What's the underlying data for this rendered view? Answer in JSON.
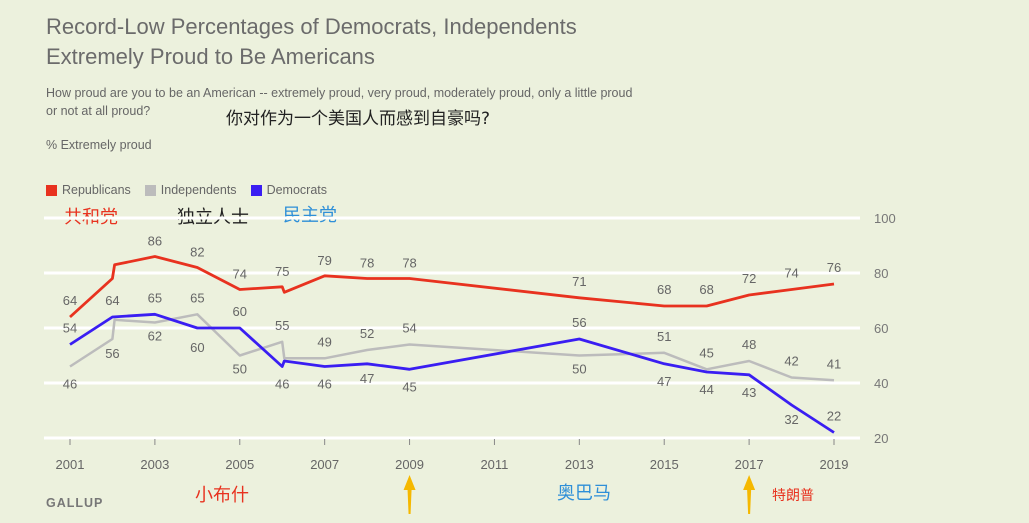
{
  "title_line1": "Record-Low Percentages of Democrats, Independents",
  "title_line2": "Extremely Proud to Be Americans",
  "subtitle_line1": "How proud are you to be an American -- extremely proud, very proud, moderately proud, only a little proud",
  "subtitle_line2": "or not at all proud?",
  "annotation_question": "你对作为一个美国人而感到自豪吗?",
  "unit_label": "% Extremely proud",
  "source": "GALLUP",
  "colors": {
    "background": "#ecf1dd",
    "republicans": "#e8321f",
    "independents": "#bcbcbc",
    "democrats": "#3a1ef2",
    "annotation_red": "#e8321f",
    "annotation_blue": "#2e8fd8",
    "arrow": "#f5b800"
  },
  "legend_cn": {
    "republicans": "共和党",
    "independents": "独立人士",
    "democrats": "民主党"
  },
  "annotations": {
    "bush": "小布什",
    "obama": "奥巴马",
    "trump": "特朗普"
  },
  "arrows": [
    {
      "name": "arrow-2009",
      "year": 2009
    },
    {
      "name": "arrow-2017",
      "year": 2017
    }
  ],
  "chart_data": {
    "type": "line",
    "title": "Record-Low Percentages of Democrats, Independents Extremely Proud to Be Americans",
    "ylabel": "% Extremely proud",
    "ylim": [
      20,
      100
    ],
    "yticks": [
      20,
      40,
      60,
      80,
      100
    ],
    "xlim": [
      2001,
      2019
    ],
    "xticks": [
      2001,
      2003,
      2005,
      2007,
      2009,
      2011,
      2013,
      2015,
      2017,
      2019
    ],
    "grid": true,
    "legend_position": "top-left",
    "series": [
      {
        "name": "Republicans",
        "key": "republicans",
        "points": [
          {
            "x": 2001.0,
            "y": 64,
            "label": "64"
          },
          {
            "x": 2002.0,
            "y": 78,
            "label": ""
          },
          {
            "x": 2002.05,
            "y": 83,
            "label": ""
          },
          {
            "x": 2003.0,
            "y": 86,
            "label": "86"
          },
          {
            "x": 2004.0,
            "y": 82,
            "label": "82"
          },
          {
            "x": 2005.0,
            "y": 74,
            "label": "74"
          },
          {
            "x": 2006.0,
            "y": 75,
            "label": "75"
          },
          {
            "x": 2006.05,
            "y": 73,
            "label": ""
          },
          {
            "x": 2007.0,
            "y": 79,
            "label": "79"
          },
          {
            "x": 2008.0,
            "y": 78,
            "label": "78"
          },
          {
            "x": 2009.0,
            "y": 78,
            "label": "78"
          },
          {
            "x": 2013.0,
            "y": 71,
            "label": "71"
          },
          {
            "x": 2015.0,
            "y": 68,
            "label": "68"
          },
          {
            "x": 2016.0,
            "y": 68,
            "label": "68"
          },
          {
            "x": 2017.0,
            "y": 72,
            "label": "72"
          },
          {
            "x": 2018.0,
            "y": 74,
            "label": "74"
          },
          {
            "x": 2019.0,
            "y": 76,
            "label": "76"
          }
        ]
      },
      {
        "name": "Independents",
        "key": "independents",
        "points": [
          {
            "x": 2001.0,
            "y": 46,
            "label": "46"
          },
          {
            "x": 2002.0,
            "y": 56,
            "label": "56"
          },
          {
            "x": 2002.05,
            "y": 63,
            "label": ""
          },
          {
            "x": 2003.0,
            "y": 62,
            "label": "62"
          },
          {
            "x": 2004.0,
            "y": 65,
            "label": "65"
          },
          {
            "x": 2005.0,
            "y": 50,
            "label": "50"
          },
          {
            "x": 2006.0,
            "y": 55,
            "label": "55"
          },
          {
            "x": 2006.05,
            "y": 49,
            "label": ""
          },
          {
            "x": 2007.0,
            "y": 49,
            "label": "49"
          },
          {
            "x": 2008.0,
            "y": 52,
            "label": "52"
          },
          {
            "x": 2009.0,
            "y": 54,
            "label": "54"
          },
          {
            "x": 2013.0,
            "y": 50,
            "label": "50"
          },
          {
            "x": 2015.0,
            "y": 51,
            "label": "51"
          },
          {
            "x": 2016.0,
            "y": 45,
            "label": "45"
          },
          {
            "x": 2017.0,
            "y": 48,
            "label": "48"
          },
          {
            "x": 2018.0,
            "y": 42,
            "label": "42"
          },
          {
            "x": 2019.0,
            "y": 41,
            "label": "41"
          }
        ]
      },
      {
        "name": "Democrats",
        "key": "democrats",
        "points": [
          {
            "x": 2001.0,
            "y": 54,
            "label": "54"
          },
          {
            "x": 2002.0,
            "y": 64,
            "label": "64"
          },
          {
            "x": 2003.0,
            "y": 65,
            "label": "65"
          },
          {
            "x": 2004.0,
            "y": 60,
            "label": "60"
          },
          {
            "x": 2005.0,
            "y": 60,
            "label": "60"
          },
          {
            "x": 2006.0,
            "y": 46,
            "label": "46"
          },
          {
            "x": 2006.05,
            "y": 48,
            "label": ""
          },
          {
            "x": 2007.0,
            "y": 46,
            "label": "46"
          },
          {
            "x": 2008.0,
            "y": 47,
            "label": "47"
          },
          {
            "x": 2009.0,
            "y": 45,
            "label": "45"
          },
          {
            "x": 2013.0,
            "y": 56,
            "label": "56"
          },
          {
            "x": 2015.0,
            "y": 47,
            "label": "47"
          },
          {
            "x": 2016.0,
            "y": 44,
            "label": "44"
          },
          {
            "x": 2017.0,
            "y": 43,
            "label": "43"
          },
          {
            "x": 2018.0,
            "y": 32,
            "label": "32"
          },
          {
            "x": 2019.0,
            "y": 22,
            "label": "22"
          }
        ]
      }
    ]
  }
}
